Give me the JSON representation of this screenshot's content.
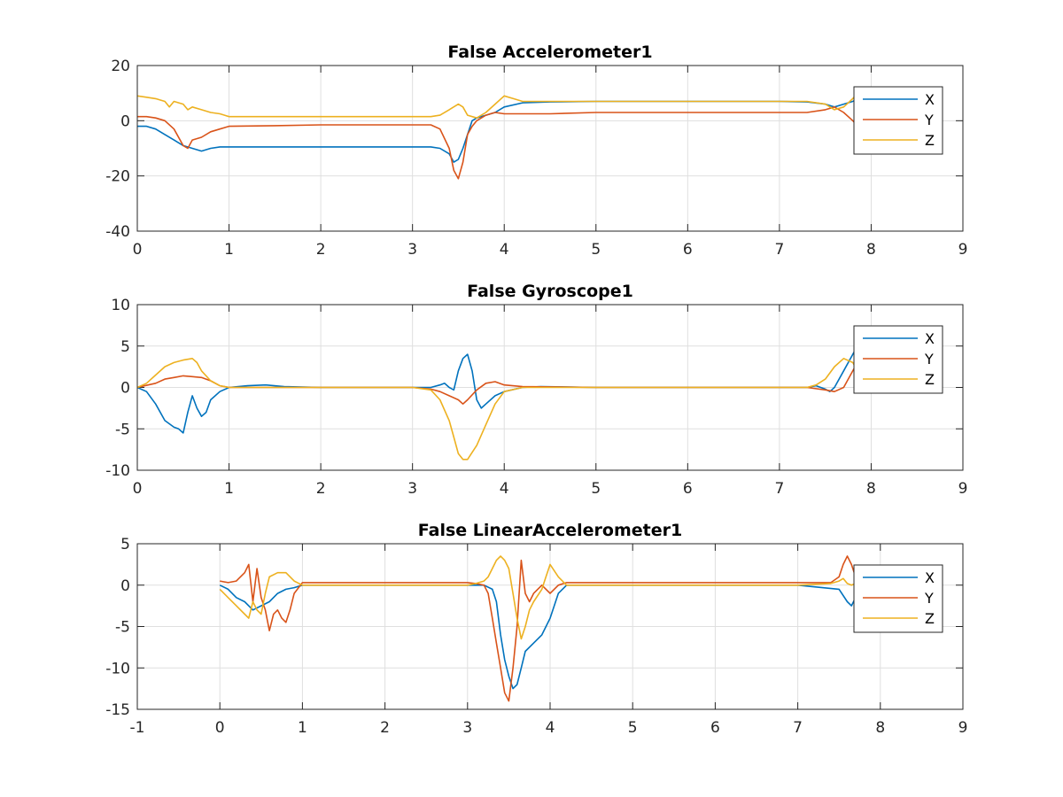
{
  "colors": {
    "X": "#0072BD",
    "Y": "#D95319",
    "Z": "#EDB120"
  },
  "chart_data": [
    {
      "type": "line",
      "title": "False Accelerometer1",
      "xlabel": "",
      "ylabel": "",
      "xlim": [
        0,
        9
      ],
      "ylim": [
        -40,
        20
      ],
      "xticks": [
        "0",
        "1",
        "2",
        "3",
        "4",
        "5",
        "6",
        "7",
        "8",
        "9"
      ],
      "yticks": [
        "-40",
        "-20",
        "0",
        "20"
      ],
      "grid": true,
      "legend": "top-right",
      "series": [
        {
          "name": "X",
          "x": [
            0,
            0.1,
            0.2,
            0.3,
            0.4,
            0.5,
            0.6,
            0.7,
            0.8,
            0.9,
            1.0,
            1.5,
            2.0,
            2.5,
            3.0,
            3.2,
            3.3,
            3.4,
            3.45,
            3.5,
            3.55,
            3.6,
            3.65,
            3.7,
            3.8,
            3.9,
            4.0,
            4.2,
            4.5,
            5.0,
            6.0,
            7.0,
            7.3,
            7.5,
            7.6,
            7.7,
            7.8,
            7.85
          ],
          "y": [
            -2,
            -2,
            -3,
            -5,
            -7,
            -9,
            -10,
            -11,
            -10,
            -9.5,
            -9.5,
            -9.5,
            -9.5,
            -9.5,
            -9.5,
            -9.5,
            -10,
            -12,
            -15,
            -14,
            -10,
            -5,
            0,
            1,
            2,
            3,
            5,
            6.5,
            6.8,
            7,
            7,
            7,
            6.8,
            6,
            5,
            6,
            7,
            8
          ]
        },
        {
          "name": "Y",
          "x": [
            0,
            0.1,
            0.2,
            0.3,
            0.4,
            0.5,
            0.55,
            0.6,
            0.7,
            0.8,
            0.9,
            1.0,
            1.5,
            2.0,
            2.5,
            3.0,
            3.2,
            3.3,
            3.4,
            3.45,
            3.5,
            3.55,
            3.6,
            3.65,
            3.7,
            3.8,
            3.9,
            4.0,
            4.2,
            4.5,
            5.0,
            6.0,
            7.0,
            7.3,
            7.5,
            7.6,
            7.7,
            7.8,
            7.85
          ],
          "y": [
            1.5,
            1.5,
            1,
            0,
            -3,
            -9,
            -10,
            -7,
            -6,
            -4,
            -3,
            -2,
            -1.8,
            -1.5,
            -1.5,
            -1.5,
            -1.5,
            -3,
            -10,
            -18,
            -21,
            -15,
            -5,
            -2,
            0,
            2,
            3,
            2.5,
            2.5,
            2.5,
            3,
            3,
            3,
            3,
            4,
            5,
            3,
            0,
            -2
          ]
        },
        {
          "name": "Z",
          "x": [
            0,
            0.1,
            0.2,
            0.3,
            0.35,
            0.4,
            0.5,
            0.55,
            0.6,
            0.7,
            0.8,
            0.9,
            1.0,
            1.5,
            2.0,
            2.5,
            3.0,
            3.2,
            3.3,
            3.4,
            3.5,
            3.55,
            3.6,
            3.7,
            3.8,
            3.9,
            4.0,
            4.1,
            4.2,
            4.5,
            5.0,
            6.0,
            7.0,
            7.3,
            7.5,
            7.6,
            7.7,
            7.8,
            7.85
          ],
          "y": [
            9,
            8.5,
            8,
            7,
            5,
            7,
            6,
            4,
            5,
            4,
            3,
            2.5,
            1.5,
            1.5,
            1.5,
            1.5,
            1.5,
            1.5,
            2,
            4,
            6,
            5,
            2,
            1,
            3,
            6,
            9,
            8,
            7,
            7,
            7,
            7,
            7,
            7,
            6,
            4,
            5,
            8,
            10
          ]
        }
      ]
    },
    {
      "type": "line",
      "title": "False Gyroscope1",
      "xlabel": "",
      "ylabel": "",
      "xlim": [
        0,
        9
      ],
      "ylim": [
        -10,
        10
      ],
      "xticks": [
        "0",
        "1",
        "2",
        "3",
        "4",
        "5",
        "6",
        "7",
        "8",
        "9"
      ],
      "yticks": [
        "-10",
        "-5",
        "0",
        "5",
        "10"
      ],
      "grid": true,
      "legend": "top-right",
      "series": [
        {
          "name": "X",
          "x": [
            0,
            0.1,
            0.2,
            0.3,
            0.4,
            0.45,
            0.5,
            0.55,
            0.6,
            0.65,
            0.7,
            0.75,
            0.8,
            0.9,
            1.0,
            1.2,
            1.4,
            1.6,
            2.0,
            2.5,
            3.0,
            3.2,
            3.3,
            3.35,
            3.4,
            3.45,
            3.5,
            3.55,
            3.6,
            3.65,
            3.7,
            3.75,
            3.8,
            3.9,
            4.0,
            4.2,
            4.4,
            5.0,
            6.0,
            7.0,
            7.3,
            7.4,
            7.5,
            7.55,
            7.6,
            7.7,
            7.8,
            7.85
          ],
          "y": [
            0,
            -0.5,
            -2,
            -4,
            -4.8,
            -5,
            -5.5,
            -3,
            -1,
            -2.5,
            -3.5,
            -3,
            -1.5,
            -0.5,
            0,
            0.2,
            0.3,
            0.1,
            0,
            0,
            0,
            0,
            0.3,
            0.5,
            0,
            -0.3,
            2,
            3.5,
            4,
            2,
            -1.5,
            -2.5,
            -2,
            -1,
            -0.5,
            0,
            0.1,
            0,
            0,
            0,
            0,
            0.2,
            -0.2,
            -0.5,
            0,
            2,
            4,
            5
          ]
        },
        {
          "name": "Y",
          "x": [
            0,
            0.2,
            0.3,
            0.4,
            0.5,
            0.6,
            0.7,
            0.8,
            0.9,
            1.0,
            1.5,
            2.0,
            2.5,
            3.0,
            3.2,
            3.3,
            3.4,
            3.5,
            3.55,
            3.6,
            3.7,
            3.8,
            3.9,
            4.0,
            4.2,
            5.0,
            6.0,
            7.0,
            7.3,
            7.5,
            7.6,
            7.7,
            7.8,
            7.85
          ],
          "y": [
            0,
            0.5,
            1,
            1.2,
            1.4,
            1.3,
            1.2,
            0.8,
            0.2,
            0,
            0,
            0,
            0,
            0,
            -0.2,
            -0.5,
            -1,
            -1.5,
            -2,
            -1.5,
            -0.3,
            0.5,
            0.7,
            0.3,
            0.1,
            0,
            0,
            0,
            0,
            -0.3,
            -0.5,
            0,
            2,
            3
          ]
        },
        {
          "name": "Z",
          "x": [
            0,
            0.1,
            0.2,
            0.3,
            0.4,
            0.5,
            0.55,
            0.6,
            0.65,
            0.7,
            0.8,
            0.9,
            1.0,
            1.5,
            2.0,
            2.5,
            3.0,
            3.2,
            3.3,
            3.4,
            3.45,
            3.5,
            3.55,
            3.6,
            3.7,
            3.8,
            3.9,
            4.0,
            4.2,
            5.0,
            6.0,
            7.0,
            7.3,
            7.4,
            7.5,
            7.6,
            7.7,
            7.8,
            7.85
          ],
          "y": [
            0,
            0.5,
            1.5,
            2.5,
            3,
            3.3,
            3.4,
            3.5,
            3,
            2,
            0.8,
            0.2,
            0,
            0,
            0,
            0,
            0,
            -0.3,
            -1.5,
            -4,
            -6,
            -8,
            -8.7,
            -8.7,
            -7,
            -4.5,
            -2,
            -0.5,
            0,
            0,
            0,
            0,
            0,
            0.3,
            1,
            2.5,
            3.5,
            3,
            2
          ]
        }
      ]
    },
    {
      "type": "line",
      "title": "False LinearAccelerometer1",
      "xlabel": "",
      "ylabel": "",
      "xlim": [
        -1,
        9
      ],
      "ylim": [
        -15,
        5
      ],
      "xticks": [
        "-1",
        "0",
        "1",
        "2",
        "3",
        "4",
        "5",
        "6",
        "7",
        "8",
        "9"
      ],
      "yticks": [
        "-15",
        "-10",
        "-5",
        "0",
        "5"
      ],
      "grid": true,
      "legend": "top-right",
      "series": [
        {
          "name": "X",
          "x": [
            0,
            0.1,
            0.2,
            0.3,
            0.4,
            0.5,
            0.6,
            0.7,
            0.8,
            0.9,
            1.0,
            1.5,
            2.0,
            2.5,
            3.0,
            3.2,
            3.3,
            3.35,
            3.4,
            3.45,
            3.5,
            3.55,
            3.6,
            3.65,
            3.7,
            3.8,
            3.9,
            4.0,
            4.1,
            4.2,
            5.0,
            6.0,
            7.0,
            7.5,
            7.6,
            7.65,
            7.7,
            7.75
          ],
          "y": [
            0,
            -0.5,
            -1.5,
            -2,
            -3,
            -2.5,
            -2,
            -1,
            -0.5,
            -0.3,
            0,
            0,
            0,
            0,
            0,
            0,
            -0.5,
            -2,
            -6,
            -9,
            -11,
            -12.5,
            -12,
            -10,
            -8,
            -7,
            -6,
            -4,
            -1,
            0,
            0,
            0,
            0,
            -0.5,
            -2,
            -2.5,
            -1.5,
            -2
          ]
        },
        {
          "name": "Y",
          "x": [
            0,
            0.1,
            0.2,
            0.3,
            0.35,
            0.4,
            0.45,
            0.5,
            0.55,
            0.6,
            0.65,
            0.7,
            0.75,
            0.8,
            0.85,
            0.9,
            1.0,
            1.5,
            2.0,
            2.5,
            3.0,
            3.1,
            3.2,
            3.25,
            3.3,
            3.35,
            3.4,
            3.45,
            3.5,
            3.55,
            3.6,
            3.65,
            3.7,
            3.75,
            3.8,
            3.9,
            4.0,
            4.1,
            4.2,
            5.0,
            6.0,
            7.0,
            7.4,
            7.5,
            7.55,
            7.6,
            7.65,
            7.7,
            7.75
          ],
          "y": [
            0.5,
            0.3,
            0.5,
            1.5,
            2.5,
            -2,
            2,
            -1.5,
            -3,
            -5.5,
            -3.5,
            -3,
            -4,
            -4.5,
            -3,
            -1,
            0.3,
            0.3,
            0.3,
            0.3,
            0.3,
            0.2,
            0,
            -1,
            -4,
            -7,
            -10,
            -13,
            -14,
            -10,
            -5,
            3,
            -1,
            -2,
            -1,
            0,
            -1,
            0,
            0.3,
            0.3,
            0.3,
            0.3,
            0.3,
            1,
            2.5,
            3.5,
            2.5,
            1,
            0
          ]
        },
        {
          "name": "Z",
          "x": [
            0,
            0.1,
            0.2,
            0.3,
            0.35,
            0.4,
            0.45,
            0.5,
            0.55,
            0.6,
            0.7,
            0.8,
            0.9,
            1.0,
            1.5,
            2.0,
            2.5,
            3.0,
            3.1,
            3.2,
            3.25,
            3.3,
            3.35,
            3.4,
            3.45,
            3.5,
            3.55,
            3.6,
            3.65,
            3.7,
            3.75,
            3.8,
            3.9,
            3.95,
            4.0,
            4.1,
            4.2,
            5.0,
            6.0,
            7.0,
            7.4,
            7.5,
            7.55,
            7.6,
            7.65,
            7.7,
            7.75
          ],
          "y": [
            -0.5,
            -1.5,
            -2.5,
            -3.5,
            -4,
            -2,
            -3,
            -3.5,
            -1,
            1,
            1.5,
            1.5,
            0.5,
            0,
            0,
            0,
            0,
            0,
            0.2,
            0.5,
            1,
            2,
            3,
            3.5,
            3,
            2,
            -1,
            -4,
            -6.5,
            -5,
            -3,
            -2,
            -0.5,
            1,
            2.5,
            1,
            0,
            0,
            0,
            0,
            0.2,
            0.5,
            0.8,
            0.2,
            0,
            0.2,
            0
          ]
        }
      ]
    }
  ]
}
